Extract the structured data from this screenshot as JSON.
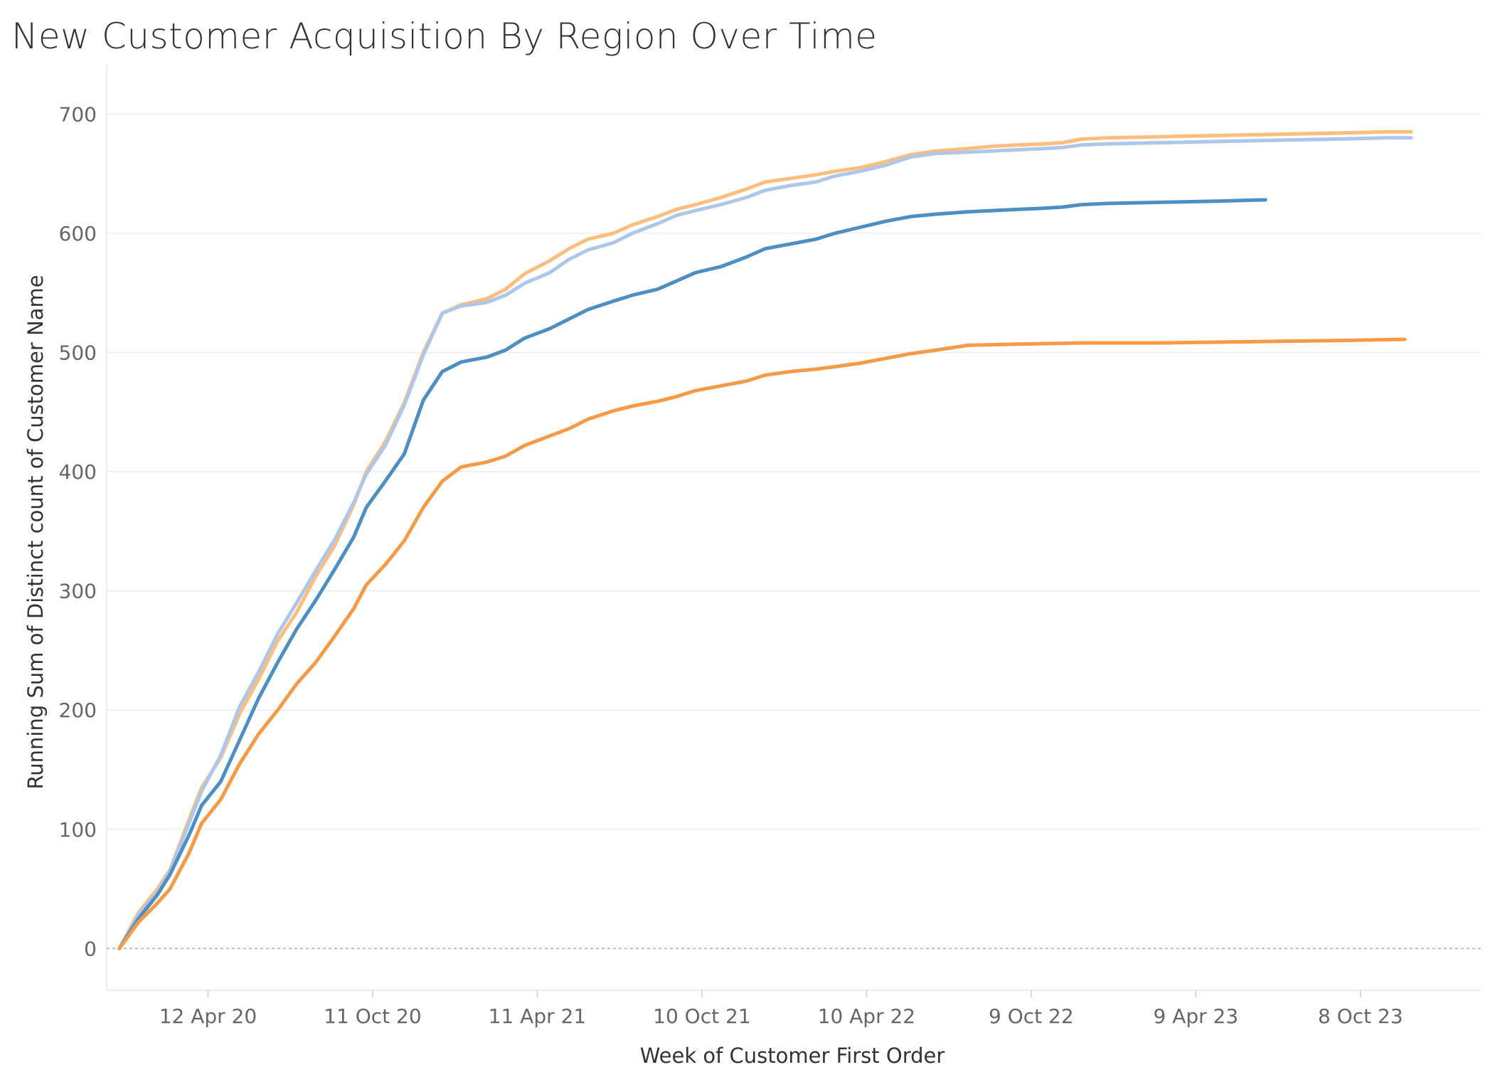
{
  "chart_data": {
    "type": "line",
    "title": "New Customer Acquisition By Region Over Time",
    "xlabel": "Week of Customer First Order",
    "ylabel": "Running Sum of Distinct count of Customer Name",
    "ylim": [
      -35,
      730
    ],
    "xlim": [
      "2019-12-22",
      "2024-02-18"
    ],
    "yticks": [
      0,
      100,
      200,
      300,
      400,
      500,
      600,
      700
    ],
    "xticks": [
      {
        "date": "2020-04-12",
        "label": "12 Apr 20"
      },
      {
        "date": "2020-10-11",
        "label": "11 Oct 20"
      },
      {
        "date": "2021-04-11",
        "label": "11 Apr 21"
      },
      {
        "date": "2021-10-10",
        "label": "10 Oct 21"
      },
      {
        "date": "2022-04-10",
        "label": "10 Apr 22"
      },
      {
        "date": "2022-10-09",
        "label": "9 Oct 22"
      },
      {
        "date": "2023-04-09",
        "label": "9 Apr 23"
      },
      {
        "date": "2023-10-08",
        "label": "8 Oct 23"
      }
    ],
    "grid": true,
    "zero_line": "dashed",
    "series": [
      {
        "color": "#ffbe7d",
        "points": [
          [
            "2020-01-05",
            0
          ],
          [
            "2020-01-26",
            30
          ],
          [
            "2020-02-16",
            50
          ],
          [
            "2020-03-01",
            66
          ],
          [
            "2020-03-22",
            108
          ],
          [
            "2020-04-05",
            135
          ],
          [
            "2020-04-26",
            160
          ],
          [
            "2020-05-17",
            197
          ],
          [
            "2020-06-07",
            226
          ],
          [
            "2020-06-28",
            258
          ],
          [
            "2020-07-19",
            282
          ],
          [
            "2020-08-09",
            312
          ],
          [
            "2020-08-30",
            338
          ],
          [
            "2020-09-20",
            372
          ],
          [
            "2020-10-04",
            400
          ],
          [
            "2020-10-25",
            425
          ],
          [
            "2020-11-15",
            458
          ],
          [
            "2020-12-06",
            500
          ],
          [
            "2020-12-27",
            533
          ],
          [
            "2021-01-17",
            540
          ],
          [
            "2021-02-14",
            545
          ],
          [
            "2021-03-07",
            553
          ],
          [
            "2021-03-28",
            566
          ],
          [
            "2021-04-25",
            577
          ],
          [
            "2021-05-16",
            587
          ],
          [
            "2021-06-06",
            595
          ],
          [
            "2021-07-04",
            600
          ],
          [
            "2021-07-25",
            607
          ],
          [
            "2021-08-22",
            614
          ],
          [
            "2021-09-12",
            620
          ],
          [
            "2021-10-03",
            624
          ],
          [
            "2021-10-31",
            630
          ],
          [
            "2021-11-28",
            637
          ],
          [
            "2021-12-19",
            643
          ],
          [
            "2022-01-16",
            646
          ],
          [
            "2022-02-13",
            649
          ],
          [
            "2022-03-06",
            652
          ],
          [
            "2022-04-03",
            655
          ],
          [
            "2022-05-01",
            660
          ],
          [
            "2022-05-29",
            666
          ],
          [
            "2022-06-26",
            669
          ],
          [
            "2022-07-31",
            671
          ],
          [
            "2022-08-28",
            673
          ],
          [
            "2022-09-25",
            674
          ],
          [
            "2022-10-23",
            675
          ],
          [
            "2022-11-13",
            676
          ],
          [
            "2022-12-04",
            679
          ],
          [
            "2023-01-01",
            680
          ],
          [
            "2023-03-05",
            681
          ],
          [
            "2023-05-07",
            682
          ],
          [
            "2023-07-09",
            683
          ],
          [
            "2023-09-10",
            684
          ],
          [
            "2023-11-05",
            685
          ],
          [
            "2023-12-03",
            685
          ]
        ]
      },
      {
        "color": "#aec7e8",
        "points": [
          [
            "2020-01-05",
            0
          ],
          [
            "2020-01-26",
            28
          ],
          [
            "2020-02-16",
            47
          ],
          [
            "2020-03-01",
            65
          ],
          [
            "2020-03-22",
            105
          ],
          [
            "2020-04-05",
            132
          ],
          [
            "2020-04-26",
            162
          ],
          [
            "2020-05-17",
            203
          ],
          [
            "2020-06-07",
            232
          ],
          [
            "2020-06-28",
            264
          ],
          [
            "2020-07-19",
            290
          ],
          [
            "2020-08-09",
            317
          ],
          [
            "2020-08-30",
            343
          ],
          [
            "2020-09-20",
            374
          ],
          [
            "2020-10-04",
            398
          ],
          [
            "2020-10-25",
            422
          ],
          [
            "2020-11-15",
            456
          ],
          [
            "2020-12-06",
            498
          ],
          [
            "2020-12-27",
            533
          ],
          [
            "2021-01-17",
            539
          ],
          [
            "2021-02-14",
            542
          ],
          [
            "2021-03-07",
            548
          ],
          [
            "2021-03-28",
            558
          ],
          [
            "2021-04-25",
            567
          ],
          [
            "2021-05-16",
            578
          ],
          [
            "2021-06-06",
            586
          ],
          [
            "2021-07-04",
            592
          ],
          [
            "2021-07-25",
            600
          ],
          [
            "2021-08-22",
            608
          ],
          [
            "2021-09-12",
            615
          ],
          [
            "2021-10-03",
            619
          ],
          [
            "2021-10-31",
            624
          ],
          [
            "2021-11-28",
            630
          ],
          [
            "2021-12-19",
            636
          ],
          [
            "2022-01-16",
            640
          ],
          [
            "2022-02-13",
            643
          ],
          [
            "2022-03-06",
            648
          ],
          [
            "2022-04-03",
            652
          ],
          [
            "2022-05-01",
            657
          ],
          [
            "2022-05-29",
            664
          ],
          [
            "2022-06-26",
            667
          ],
          [
            "2022-07-31",
            668
          ],
          [
            "2022-08-28",
            669
          ],
          [
            "2022-09-25",
            670
          ],
          [
            "2022-10-23",
            671
          ],
          [
            "2022-11-13",
            672
          ],
          [
            "2022-12-04",
            674
          ],
          [
            "2023-01-01",
            675
          ],
          [
            "2023-03-05",
            676
          ],
          [
            "2023-05-07",
            677
          ],
          [
            "2023-07-09",
            678
          ],
          [
            "2023-09-10",
            679
          ],
          [
            "2023-11-05",
            680
          ],
          [
            "2023-12-03",
            680
          ]
        ]
      },
      {
        "color": "#4e8fc3",
        "points": [
          [
            "2020-01-05",
            0
          ],
          [
            "2020-01-26",
            25
          ],
          [
            "2020-02-16",
            45
          ],
          [
            "2020-03-01",
            62
          ],
          [
            "2020-03-22",
            95
          ],
          [
            "2020-04-05",
            120
          ],
          [
            "2020-04-26",
            140
          ],
          [
            "2020-05-17",
            175
          ],
          [
            "2020-06-07",
            210
          ],
          [
            "2020-06-28",
            240
          ],
          [
            "2020-07-19",
            268
          ],
          [
            "2020-08-09",
            292
          ],
          [
            "2020-08-30",
            318
          ],
          [
            "2020-09-20",
            345
          ],
          [
            "2020-10-04",
            370
          ],
          [
            "2020-10-25",
            392
          ],
          [
            "2020-11-15",
            415
          ],
          [
            "2020-12-06",
            460
          ],
          [
            "2020-12-27",
            484
          ],
          [
            "2021-01-17",
            492
          ],
          [
            "2021-02-14",
            496
          ],
          [
            "2021-03-07",
            502
          ],
          [
            "2021-03-28",
            512
          ],
          [
            "2021-04-25",
            520
          ],
          [
            "2021-05-16",
            528
          ],
          [
            "2021-06-06",
            536
          ],
          [
            "2021-07-04",
            543
          ],
          [
            "2021-07-25",
            548
          ],
          [
            "2021-08-22",
            553
          ],
          [
            "2021-09-12",
            560
          ],
          [
            "2021-10-03",
            567
          ],
          [
            "2021-10-31",
            572
          ],
          [
            "2021-11-28",
            580
          ],
          [
            "2021-12-19",
            587
          ],
          [
            "2022-01-16",
            591
          ],
          [
            "2022-02-13",
            595
          ],
          [
            "2022-03-06",
            600
          ],
          [
            "2022-04-03",
            605
          ],
          [
            "2022-05-01",
            610
          ],
          [
            "2022-05-29",
            614
          ],
          [
            "2022-06-26",
            616
          ],
          [
            "2022-07-31",
            618
          ],
          [
            "2022-08-28",
            619
          ],
          [
            "2022-09-25",
            620
          ],
          [
            "2022-10-23",
            621
          ],
          [
            "2022-11-13",
            622
          ],
          [
            "2022-12-04",
            624
          ],
          [
            "2023-01-01",
            625
          ],
          [
            "2023-03-05",
            626
          ],
          [
            "2023-05-07",
            627
          ],
          [
            "2023-06-25",
            628
          ]
        ]
      },
      {
        "color": "#f79a48",
        "points": [
          [
            "2020-01-05",
            0
          ],
          [
            "2020-01-26",
            22
          ],
          [
            "2020-02-16",
            38
          ],
          [
            "2020-03-01",
            50
          ],
          [
            "2020-03-22",
            80
          ],
          [
            "2020-04-05",
            105
          ],
          [
            "2020-04-26",
            125
          ],
          [
            "2020-05-17",
            155
          ],
          [
            "2020-06-07",
            180
          ],
          [
            "2020-06-28",
            200
          ],
          [
            "2020-07-19",
            222
          ],
          [
            "2020-08-09",
            240
          ],
          [
            "2020-08-30",
            262
          ],
          [
            "2020-09-20",
            285
          ],
          [
            "2020-10-04",
            305
          ],
          [
            "2020-10-25",
            322
          ],
          [
            "2020-11-15",
            342
          ],
          [
            "2020-12-06",
            370
          ],
          [
            "2020-12-27",
            392
          ],
          [
            "2021-01-17",
            404
          ],
          [
            "2021-02-14",
            408
          ],
          [
            "2021-03-07",
            413
          ],
          [
            "2021-03-28",
            422
          ],
          [
            "2021-04-25",
            430
          ],
          [
            "2021-05-16",
            436
          ],
          [
            "2021-06-06",
            444
          ],
          [
            "2021-07-04",
            451
          ],
          [
            "2021-07-25",
            455
          ],
          [
            "2021-08-22",
            459
          ],
          [
            "2021-09-12",
            463
          ],
          [
            "2021-10-03",
            468
          ],
          [
            "2021-10-31",
            472
          ],
          [
            "2021-11-28",
            476
          ],
          [
            "2021-12-19",
            481
          ],
          [
            "2022-01-16",
            484
          ],
          [
            "2022-02-13",
            486
          ],
          [
            "2022-03-06",
            488
          ],
          [
            "2022-04-03",
            491
          ],
          [
            "2022-05-01",
            495
          ],
          [
            "2022-05-29",
            499
          ],
          [
            "2022-06-26",
            502
          ],
          [
            "2022-07-31",
            506
          ],
          [
            "2022-09-25",
            507
          ],
          [
            "2022-12-04",
            508
          ],
          [
            "2023-03-05",
            508
          ],
          [
            "2023-06-04",
            509
          ],
          [
            "2023-09-10",
            510
          ],
          [
            "2023-11-26",
            511
          ]
        ]
      }
    ]
  }
}
